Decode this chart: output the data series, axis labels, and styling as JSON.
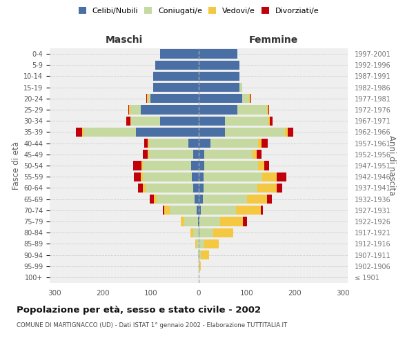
{
  "age_groups": [
    "100+",
    "95-99",
    "90-94",
    "85-89",
    "80-84",
    "75-79",
    "70-74",
    "65-69",
    "60-64",
    "55-59",
    "50-54",
    "45-49",
    "40-44",
    "35-39",
    "30-34",
    "25-29",
    "20-24",
    "15-19",
    "10-14",
    "5-9",
    "0-4"
  ],
  "birth_years": [
    "≤ 1901",
    "1902-1906",
    "1907-1911",
    "1912-1916",
    "1917-1921",
    "1922-1926",
    "1927-1931",
    "1932-1936",
    "1937-1941",
    "1942-1946",
    "1947-1951",
    "1952-1956",
    "1957-1961",
    "1962-1966",
    "1967-1971",
    "1972-1976",
    "1977-1981",
    "1982-1986",
    "1987-1991",
    "1992-1996",
    "1997-2001"
  ],
  "colors": {
    "celibi": "#4a6fa5",
    "coniugati": "#c5d9a0",
    "vedovi": "#f5c842",
    "divorziati": "#c0000a"
  },
  "m_cel": [
    0,
    0,
    0,
    0,
    0,
    2,
    5,
    8,
    12,
    14,
    16,
    12,
    22,
    130,
    80,
    120,
    100,
    95,
    95,
    90,
    80
  ],
  "m_con": [
    0,
    0,
    2,
    5,
    12,
    28,
    55,
    80,
    98,
    102,
    100,
    92,
    82,
    110,
    60,
    22,
    5,
    0,
    0,
    0,
    0
  ],
  "m_ved": [
    0,
    0,
    0,
    2,
    5,
    8,
    12,
    6,
    6,
    5,
    3,
    2,
    2,
    3,
    2,
    3,
    2,
    0,
    0,
    0,
    0
  ],
  "m_div": [
    0,
    0,
    0,
    0,
    0,
    0,
    3,
    8,
    10,
    14,
    18,
    10,
    8,
    12,
    8,
    2,
    2,
    0,
    0,
    0,
    0
  ],
  "f_nub": [
    0,
    0,
    0,
    0,
    2,
    2,
    5,
    8,
    10,
    10,
    12,
    12,
    25,
    55,
    55,
    80,
    90,
    85,
    85,
    85,
    80
  ],
  "f_con": [
    0,
    2,
    5,
    12,
    28,
    42,
    72,
    92,
    112,
    122,
    112,
    100,
    98,
    125,
    90,
    62,
    15,
    5,
    0,
    0,
    0
  ],
  "f_ved": [
    0,
    2,
    16,
    30,
    42,
    48,
    52,
    42,
    40,
    30,
    12,
    8,
    8,
    5,
    3,
    3,
    2,
    0,
    0,
    0,
    0
  ],
  "f_div": [
    0,
    0,
    0,
    0,
    0,
    8,
    5,
    10,
    12,
    20,
    10,
    10,
    12,
    12,
    5,
    2,
    2,
    0,
    0,
    0,
    0
  ],
  "xlim": 310,
  "title": "Popolazione per età, sesso e stato civile - 2002",
  "subtitle": "COMUNE DI MARTIGNACCO (UD) - Dati ISTAT 1° gennaio 2002 - Elaborazione TUTTITALIA.IT",
  "ylabel_left": "Fasce di età",
  "ylabel_right": "Anni di nascita",
  "xlabel_left": "Maschi",
  "xlabel_right": "Femmine",
  "legend_labels": [
    "Celibi/Nubili",
    "Coniugati/e",
    "Vedovi/e",
    "Divorziati/e"
  ],
  "bg_color": "#ffffff",
  "plot_bg": "#efefef",
  "grid_color": "#cccccc"
}
